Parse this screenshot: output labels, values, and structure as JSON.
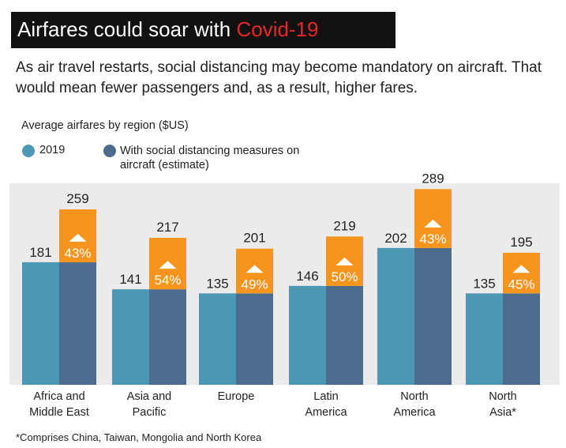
{
  "header": {
    "title": "Airfares could soar with ",
    "title_highlight": "Covid-19",
    "subtitle": "As air travel restarts, social distancing may become mandatory on aircraft. That would mean fewer passengers and, as a result, higher fares."
  },
  "legend": {
    "title": "Average airfares by region ($US)",
    "items": [
      "2019",
      "With social distancing measures on aircraft (estimate)"
    ]
  },
  "colors": {
    "bar_2019": "#4b97b4",
    "bar_sd": "#4d6b8c",
    "increase": "#f7941d",
    "title_bg": "#111111",
    "title_highlight": "#e8262a",
    "panel_bg": "#ebebeb"
  },
  "chart_data": {
    "type": "bar",
    "title": "Average airfares by region ($US)",
    "categories": [
      "Africa and\nMiddle East",
      "Asia and\nPacific",
      "Europe",
      "Latin\nAmerica",
      "North\nAmerica",
      "North\nAsia*"
    ],
    "series": [
      {
        "name": "2019",
        "values": [
          181,
          141,
          135,
          146,
          202,
          135
        ]
      },
      {
        "name": "With social distancing measures on aircraft (estimate)",
        "values": [
          259,
          217,
          201,
          219,
          289,
          195
        ]
      }
    ],
    "increase_labels": [
      "43%",
      "54%",
      "49%",
      "50%",
      "43%",
      "45%"
    ],
    "ylim": [
      0,
      310
    ],
    "xlabel": "",
    "ylabel": ""
  },
  "footnote": "*Comprises China, Taiwan, Mongolia and North Korea"
}
